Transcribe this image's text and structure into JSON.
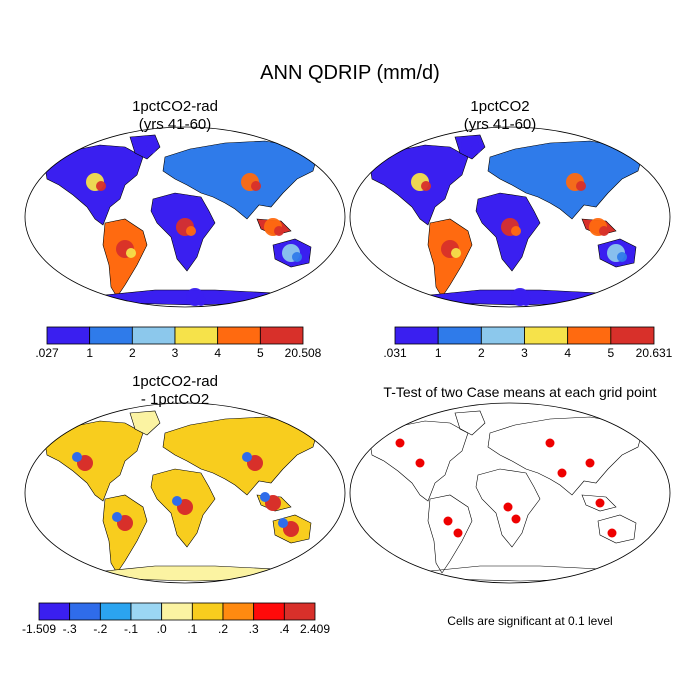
{
  "title": "ANN QDRIP (mm/d)",
  "chart_data": [
    {
      "type": "heatmap",
      "panel": "top-left",
      "title_lines": [
        "1pctCO2-rad",
        "(yrs 41-60)"
      ],
      "colorbar": {
        "labels": [
          ".027",
          "1",
          "2",
          "3",
          "4",
          "5",
          "20.508"
        ],
        "boundaries": [
          0.027,
          1,
          2,
          3,
          4,
          5,
          20.508
        ],
        "colors": [
          "#3a1ff0",
          "#2f7bea",
          "#8cc8ec",
          "#f6e24a",
          "#ff6a10",
          "#d8302a"
        ]
      }
    },
    {
      "type": "heatmap",
      "panel": "top-right",
      "title_lines": [
        "1pctCO2",
        "(yrs 41-60)"
      ],
      "colorbar": {
        "labels": [
          ".031",
          "1",
          "2",
          "3",
          "4",
          "5",
          "20.631"
        ],
        "boundaries": [
          0.031,
          1,
          2,
          3,
          4,
          5,
          20.631
        ],
        "colors": [
          "#3a1ff0",
          "#2f7bea",
          "#8cc8ec",
          "#f6e24a",
          "#ff6a10",
          "#d8302a"
        ]
      }
    },
    {
      "type": "heatmap",
      "panel": "bottom-left",
      "title_lines": [
        "1pctCO2-rad",
        "- 1pctCO2"
      ],
      "colorbar": {
        "labels": [
          "-1.509",
          "-.3",
          "-.2",
          "-.1",
          ".0",
          ".1",
          ".2",
          ".3",
          ".4",
          "2.409"
        ],
        "colors": [
          "#3a1ff0",
          "#2f6cea",
          "#2ba4f0",
          "#9bd6f3",
          "#fbf3a2",
          "#f8cd1e",
          "#ff8a10",
          "#ff0a0a",
          "#d8302a"
        ]
      }
    },
    {
      "type": "heatmap",
      "panel": "bottom-right",
      "title_lines": [
        "T-Test of two Case means at each grid point"
      ],
      "significance_color": "#ee0000",
      "footnote": "Cells are significant at 0.1 level"
    }
  ]
}
